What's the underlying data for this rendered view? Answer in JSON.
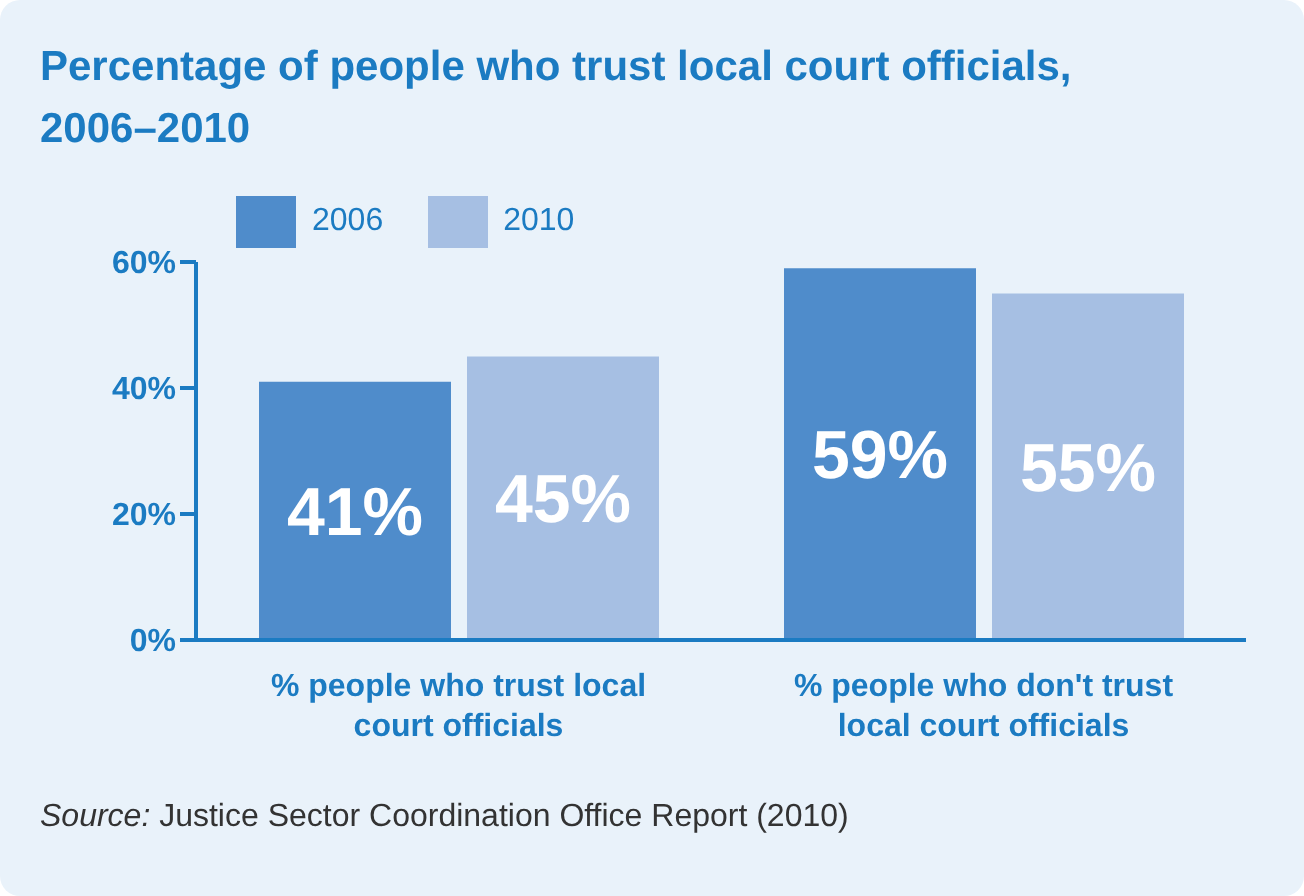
{
  "chart_data": {
    "type": "bar",
    "title": "Percentage of people who trust local court officials, 2006–2010",
    "categories": [
      "% people who trust local court officials",
      "% people who don't trust local court officials"
    ],
    "series": [
      {
        "name": "2006",
        "color": "#4f8ccb",
        "values": [
          41,
          59
        ],
        "value_labels": [
          "41%",
          "59%"
        ]
      },
      {
        "name": "2010",
        "color": "#a6bfe3",
        "values": [
          45,
          55
        ],
        "value_labels": [
          "45%",
          "55%"
        ]
      }
    ],
    "ylim": [
      0,
      60
    ],
    "yticks": [
      {
        "value": 0,
        "label": "0%"
      },
      {
        "value": 20,
        "label": "20%"
      },
      {
        "value": 40,
        "label": "40%"
      },
      {
        "value": 60,
        "label": "60%"
      }
    ],
    "legend": "top left",
    "grid": false,
    "annotations": [
      "Source: Justice Sector Coordination Office Report (2010)"
    ]
  }
}
